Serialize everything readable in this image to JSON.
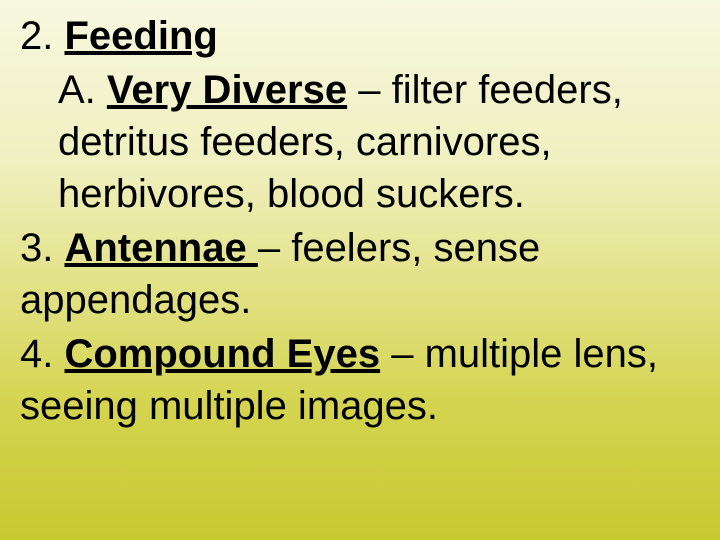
{
  "slide": {
    "background_top": "#f7f8e0",
    "background_mid": "#f0f0c0",
    "background_low": "#d4d450",
    "background_bottom": "#c8c830",
    "text_color": "#000000",
    "font_family": "Arial",
    "font_size": 40,
    "items": [
      {
        "number": "2. ",
        "heading": "Feeding",
        "subitems": [
          {
            "prefix": "A. ",
            "heading": "Very Diverse",
            "separator": " – ",
            "body": "filter feeders, detritus feeders, carnivores, herbivores, blood suckers."
          }
        ]
      },
      {
        "number": "3. ",
        "heading": "Antennae ",
        "separator": "– ",
        "body": "feelers, sense appendages."
      },
      {
        "number": "4. ",
        "heading": "Compound Eyes",
        "separator": " – ",
        "body": "multiple lens, seeing multiple images."
      }
    ]
  }
}
